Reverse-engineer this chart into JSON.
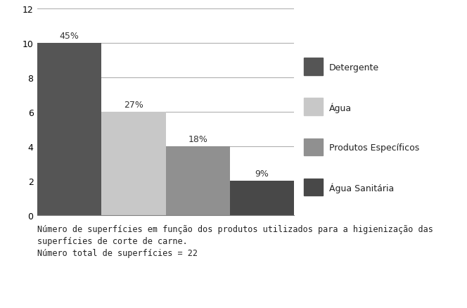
{
  "categories": [
    "Detergente",
    "Água",
    "Produtos Específicos",
    "Água Sanitária"
  ],
  "values": [
    10,
    6,
    4,
    2
  ],
  "percentages": [
    "45%",
    "27%",
    "18%",
    "9%"
  ],
  "bar_colors": [
    "#555555",
    "#c8c8c8",
    "#909090",
    "#484848"
  ],
  "legend_labels": [
    "Detergente",
    "Água",
    "Produtos Específicos",
    "Água Sanitária"
  ],
  "legend_colors": [
    "#555555",
    "#c8c8c8",
    "#909090",
    "#484848"
  ],
  "ylim": [
    0,
    12
  ],
  "yticks": [
    0,
    2,
    4,
    6,
    8,
    10,
    12
  ],
  "caption_line1": "Número de superfícies em função dos produtos utilizados para a higienização das",
  "caption_line2": "superfícies de corte de carne.",
  "caption_line3": "Número total de superfícies = 22",
  "background_color": "#ffffff",
  "grid_color": "#b0b0b0",
  "label_fontsize": 9,
  "caption_fontsize": 8.5,
  "legend_fontsize": 9
}
